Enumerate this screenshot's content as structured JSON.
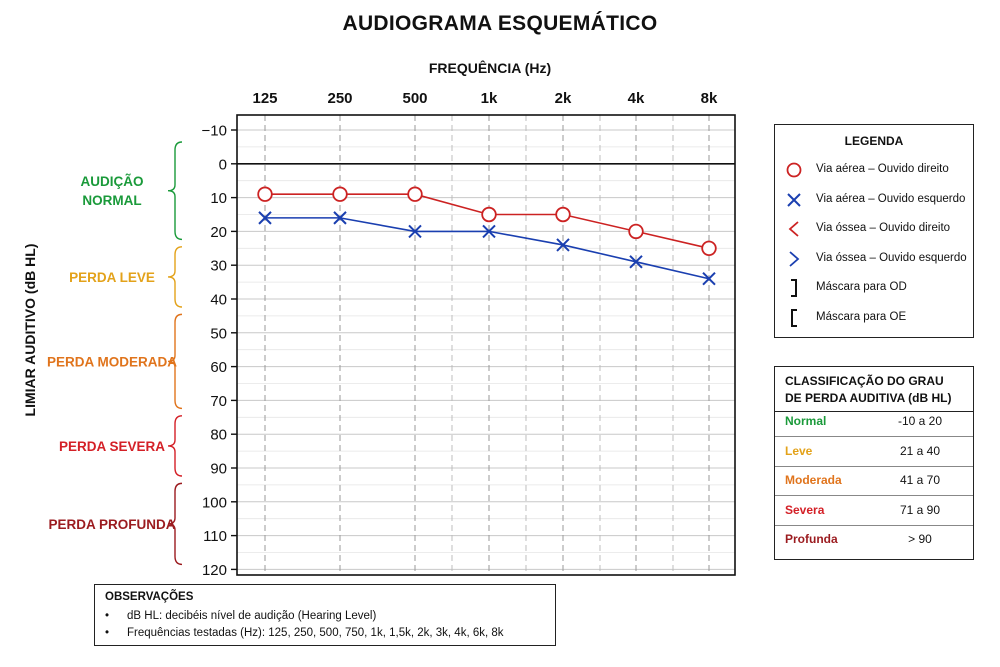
{
  "colors": {
    "normal": "#1a9a3a",
    "leve": "#e3a21a",
    "moderada": "#e0741c",
    "severa": "#d42027",
    "profunda": "#9b1b1f",
    "od": "#cc2222",
    "oe": "#1a3fb0"
  },
  "chart_data": {
    "type": "line",
    "title": "AUDIOGRAMA ESQUEMÁTICO",
    "xlabel": "FREQUÊNCIA (Hz)",
    "ylabel": "LIMIAR AUDITIVO (dB HL)",
    "categories": [
      "125",
      "250",
      "500",
      "1k",
      "2k",
      "4k",
      "8k"
    ],
    "minor_frequencies": [
      "750",
      "1,5k",
      "3k",
      "6k"
    ],
    "y_ticks": [
      "−10",
      "0",
      "10",
      "20",
      "30",
      "40",
      "50",
      "60",
      "70",
      "80",
      "90",
      "100",
      "110",
      "120"
    ],
    "ylim": [
      -10,
      120
    ],
    "y_inverted": true,
    "grid": true,
    "series": [
      {
        "name": "Via aérea – Ouvido direito",
        "marker": "circle",
        "color": "#cc2222",
        "values": [
          9,
          9,
          9,
          15,
          15,
          20,
          25
        ]
      },
      {
        "name": "Via aérea – Ouvido esquerdo",
        "marker": "x",
        "color": "#1a3fb0",
        "values": [
          16,
          16,
          20,
          20,
          24,
          29,
          34
        ]
      }
    ],
    "hearing_ranges": [
      {
        "label": [
          "AUDIÇÃO",
          "NORMAL"
        ],
        "from": -10,
        "to": 20,
        "color": "#1a9a3a"
      },
      {
        "label": [
          "PERDA LEVE"
        ],
        "from": 21,
        "to": 40,
        "color": "#e3a21a"
      },
      {
        "label": [
          "PERDA MODERADA"
        ],
        "from": 41,
        "to": 70,
        "color": "#e0741c"
      },
      {
        "label": [
          "PERDA SEVERA"
        ],
        "from": 71,
        "to": 90,
        "color": "#d42027"
      },
      {
        "label": [
          "PERDA PROFUNDA"
        ],
        "from": 91,
        "to": 120,
        "color": "#9b1b1f"
      }
    ]
  },
  "legend": {
    "title": "LEGENDA",
    "items": [
      {
        "symbol": "circle",
        "color": "#cc2222",
        "label": "Via aérea – Ouvido direito"
      },
      {
        "symbol": "x",
        "color": "#1a3fb0",
        "label": "Via aérea – Ouvido esquerdo"
      },
      {
        "symbol": "lt",
        "color": "#cc2222",
        "label": "Via óssea – Ouvido direito"
      },
      {
        "symbol": "gt",
        "color": "#1a3fb0",
        "label": "Via óssea – Ouvido esquerdo"
      },
      {
        "symbol": "rbracket",
        "color": "#111111",
        "label": "Máscara para OD"
      },
      {
        "symbol": "lbracket",
        "color": "#111111",
        "label": "Máscara para OE"
      }
    ]
  },
  "classification": {
    "title": "CLASSIFICAÇÃO DO GRAU DE PERDA AUDITIVA (dB HL)",
    "rows": [
      {
        "name": "Normal",
        "range": "-10 a 20",
        "color": "#1a9a3a"
      },
      {
        "name": "Leve",
        "range": "21 a 40",
        "color": "#e3a21a"
      },
      {
        "name": "Moderada",
        "range": "41 a 70",
        "color": "#e0741c"
      },
      {
        "name": "Severa",
        "range": "71 a 90",
        "color": "#d42027"
      },
      {
        "name": "Profunda",
        "range": "> 90",
        "color": "#9b1b1f"
      }
    ]
  },
  "observations": {
    "title": "OBSERVAÇÕES",
    "items": [
      "dB HL: decibéis nível de audição (Hearing Level)",
      "Frequências testadas (Hz): 125, 250, 500, 750, 1k, 1,5k, 2k, 3k, 4k, 6k, 8k"
    ]
  }
}
